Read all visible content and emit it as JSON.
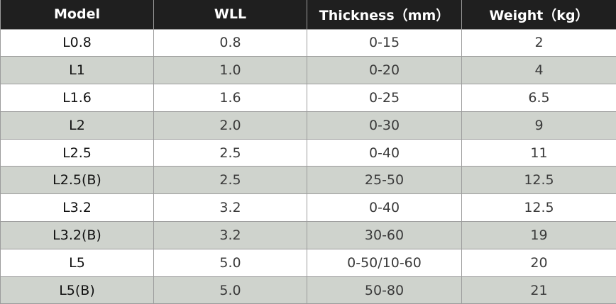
{
  "table": {
    "headers": [
      "Model",
      "WLL",
      "Thickness（mm）",
      "Weight（kg）"
    ],
    "rows": [
      [
        "L0.8",
        "0.8",
        "0-15",
        "2"
      ],
      [
        "L1",
        "1.0",
        "0-20",
        "4"
      ],
      [
        "L1.6",
        "1.6",
        "0-25",
        "6.5"
      ],
      [
        "L2",
        "2.0",
        "0-30",
        "9"
      ],
      [
        "L2.5",
        "2.5",
        "0-40",
        "11"
      ],
      [
        "L2.5(B)",
        "2.5",
        "25-50",
        "12.5"
      ],
      [
        "L3.2",
        "3.2",
        "0-40",
        "12.5"
      ],
      [
        "L3.2(B)",
        "3.2",
        "30-60",
        "19"
      ],
      [
        "L5",
        "5.0",
        "0-50/10-60",
        "20"
      ],
      [
        "L5(B)",
        "5.0",
        "50-80",
        "21"
      ]
    ]
  },
  "colors": {
    "header_bg": "#1f1f1f",
    "header_text": "#ffffff",
    "row_alt_bg": "#cfd3cd",
    "row_bg": "#ffffff",
    "border": "#9c9c9c"
  }
}
